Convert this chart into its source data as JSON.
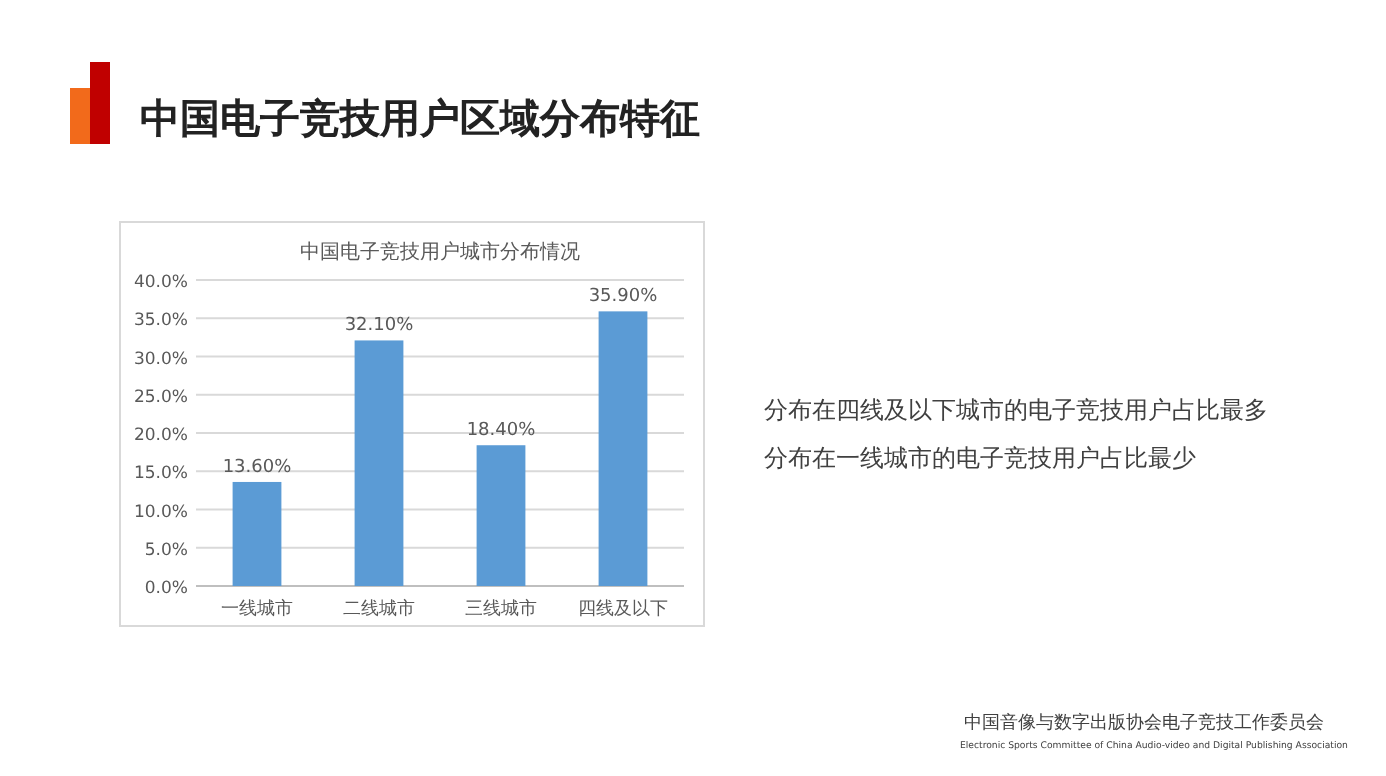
{
  "chart_data": {
    "type": "bar",
    "title": "中国电子竞技用户区域分布特征",
    "subtitle": "中国电子竞技用户城市分布情况",
    "categories": [
      "一线城市",
      "二线城市",
      "三线城市",
      "四线及以下"
    ],
    "values": [
      13.6,
      32.1,
      18.4,
      35.9
    ],
    "value_labels": [
      "13.60%",
      "32.10%",
      "18.40%",
      "35.90%"
    ],
    "color": "#5b9bd5",
    "ylim": [
      0,
      40
    ],
    "yticks": [
      {
        "value": 0,
        "label": "0.0%"
      },
      {
        "value": 5,
        "label": "5.0%"
      },
      {
        "value": 10,
        "label": "10.0%"
      },
      {
        "value": 15,
        "label": "15.0%"
      },
      {
        "value": 20,
        "label": "20.0%"
      },
      {
        "value": 25,
        "label": "25.0%"
      },
      {
        "value": 30,
        "label": "30.0%"
      },
      {
        "value": 35,
        "label": "35.0%"
      },
      {
        "value": 40,
        "label": "40.0%"
      }
    ],
    "grid": "y",
    "annotations": [
      "分布在四线及以下城市的电子竞技用户占比最多",
      "分布在一线城市的电子竞技用户占比最少",
      "中国音像与数字出版协会电子竞技工作委员会",
      "Electronic Sports Committee of China Audio-video and Digital Publishing Association"
    ]
  }
}
